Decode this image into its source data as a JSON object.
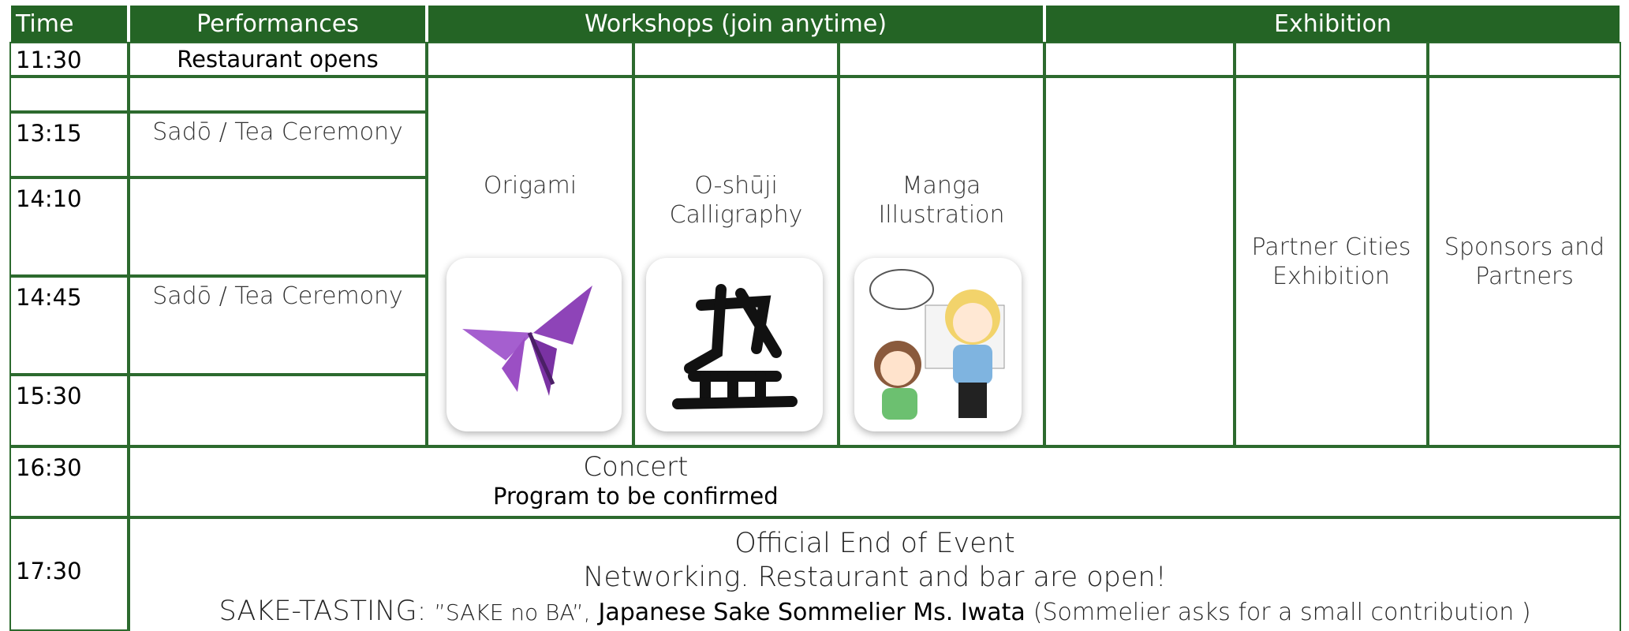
{
  "header": {
    "time": "Time",
    "performances": "Performances",
    "workshops": "Workshops (join anytime)",
    "exhibition": "Exhibition"
  },
  "schedule": {
    "times": [
      "11:30",
      "13:15",
      "14:10",
      "14:45",
      "15:30",
      "16:30",
      "17:30"
    ],
    "restaurant": "Restaurant opens",
    "performances": [
      "Sadō / Tea Ceremony",
      "Sadō / Tea Ceremony"
    ]
  },
  "workshops": [
    "Origami",
    "O-shūji\nCalligraphy",
    "Manga\nIllustration"
  ],
  "exhibitions": [
    "Partner Cities\nExhibition",
    "Sponsors and\nPartners"
  ],
  "concert": {
    "title": "Concert",
    "note": "Program to be confirmed"
  },
  "closing": {
    "line1": "Official End of Event",
    "line2": "Networking. Restaurant and bar are open!",
    "sake_prefix": "SAKE-TASTING:",
    "sake_name": "”SAKE no BA”,",
    "sommelier": "Japanese Sake Sommelier Ms. Iwata",
    "note": "(Sommelier asks for a small contribution )"
  }
}
